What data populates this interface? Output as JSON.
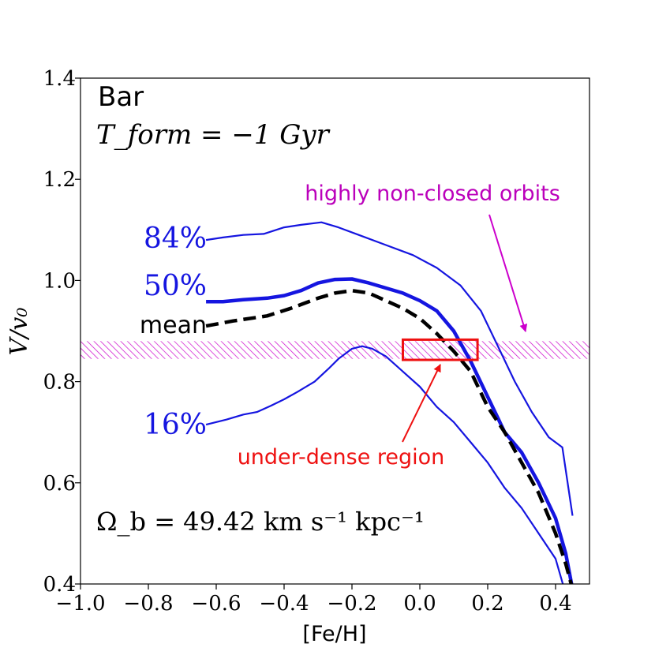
{
  "chart_data": {
    "type": "line",
    "xlabel": "[Fe/H]",
    "ylabel": "V/v₀",
    "xlim": [
      -1.0,
      0.5
    ],
    "ylim": [
      0.4,
      1.4
    ],
    "x_ticks": [
      "−1.0",
      "−0.8",
      "−0.6",
      "−0.4",
      "−0.2",
      "0.0",
      "0.2",
      "0.4"
    ],
    "x_tick_values": [
      -1.0,
      -0.8,
      -0.6,
      -0.4,
      -0.2,
      0.0,
      0.2,
      0.4
    ],
    "y_ticks": [
      "0.4",
      "0.6",
      "0.8",
      "1.0",
      "1.2",
      "1.4"
    ],
    "y_tick_values": [
      0.4,
      0.6,
      0.8,
      1.0,
      1.2,
      1.4
    ],
    "annotations": {
      "model": "Bar",
      "t_form": "T_form = −1 Gyr",
      "omega": "Ω_b = 49.42 km s⁻¹ kpc⁻¹",
      "non_closed": "highly non-closed orbits",
      "under_dense": "under-dense region"
    },
    "hatched_band": {
      "y_min": 0.845,
      "y_max": 0.88,
      "color": "#cc00cc"
    },
    "under_dense_box": {
      "x_min": -0.05,
      "x_max": 0.17,
      "y_min": 0.843,
      "y_max": 0.883,
      "color": "#ee1111"
    },
    "series": [
      {
        "name": "84%",
        "label": "84%",
        "color": "#1515e0",
        "style": "thin",
        "x": [
          -0.63,
          -0.58,
          -0.52,
          -0.46,
          -0.4,
          -0.35,
          -0.29,
          -0.24,
          -0.18,
          -0.1,
          -0.02,
          0.05,
          0.12,
          0.18,
          0.23,
          0.28,
          0.33,
          0.38,
          0.42,
          0.45
        ],
        "y": [
          1.08,
          1.085,
          1.09,
          1.092,
          1.105,
          1.11,
          1.115,
          1.105,
          1.09,
          1.07,
          1.05,
          1.025,
          0.99,
          0.94,
          0.87,
          0.8,
          0.74,
          0.69,
          0.67,
          0.535
        ]
      },
      {
        "name": "50%",
        "label": "50%",
        "color": "#1515e0",
        "style": "thick",
        "x": [
          -0.63,
          -0.58,
          -0.52,
          -0.45,
          -0.4,
          -0.35,
          -0.3,
          -0.25,
          -0.2,
          -0.15,
          -0.1,
          -0.05,
          0.0,
          0.05,
          0.1,
          0.15,
          0.2,
          0.25,
          0.3,
          0.35,
          0.4,
          0.43,
          0.45
        ],
        "y": [
          0.958,
          0.958,
          0.962,
          0.965,
          0.97,
          0.98,
          0.995,
          1.002,
          1.003,
          0.995,
          0.985,
          0.975,
          0.96,
          0.94,
          0.9,
          0.84,
          0.77,
          0.7,
          0.66,
          0.6,
          0.53,
          0.46,
          0.39
        ]
      },
      {
        "name": "mean",
        "label": "mean",
        "color": "#000000",
        "style": "dashed",
        "x": [
          -0.63,
          -0.55,
          -0.45,
          -0.38,
          -0.3,
          -0.25,
          -0.2,
          -0.15,
          -0.1,
          -0.05,
          0.0,
          0.05,
          0.1,
          0.15,
          0.2,
          0.25,
          0.3,
          0.35,
          0.4,
          0.43,
          0.45
        ],
        "y": [
          0.91,
          0.92,
          0.93,
          0.945,
          0.965,
          0.975,
          0.98,
          0.975,
          0.96,
          0.945,
          0.925,
          0.895,
          0.86,
          0.82,
          0.75,
          0.7,
          0.64,
          0.58,
          0.5,
          0.44,
          0.39
        ]
      },
      {
        "name": "16%",
        "label": "16%",
        "color": "#1515e0",
        "style": "thin",
        "x": [
          -0.63,
          -0.57,
          -0.52,
          -0.48,
          -0.44,
          -0.4,
          -0.36,
          -0.31,
          -0.27,
          -0.24,
          -0.2,
          -0.17,
          -0.14,
          -0.1,
          -0.05,
          0.0,
          0.05,
          0.1,
          0.15,
          0.2,
          0.25,
          0.3,
          0.35,
          0.4,
          0.43
        ],
        "y": [
          0.715,
          0.725,
          0.735,
          0.74,
          0.752,
          0.765,
          0.78,
          0.8,
          0.825,
          0.845,
          0.865,
          0.87,
          0.865,
          0.85,
          0.82,
          0.79,
          0.75,
          0.72,
          0.68,
          0.64,
          0.59,
          0.55,
          0.5,
          0.45,
          0.38
        ]
      }
    ]
  }
}
